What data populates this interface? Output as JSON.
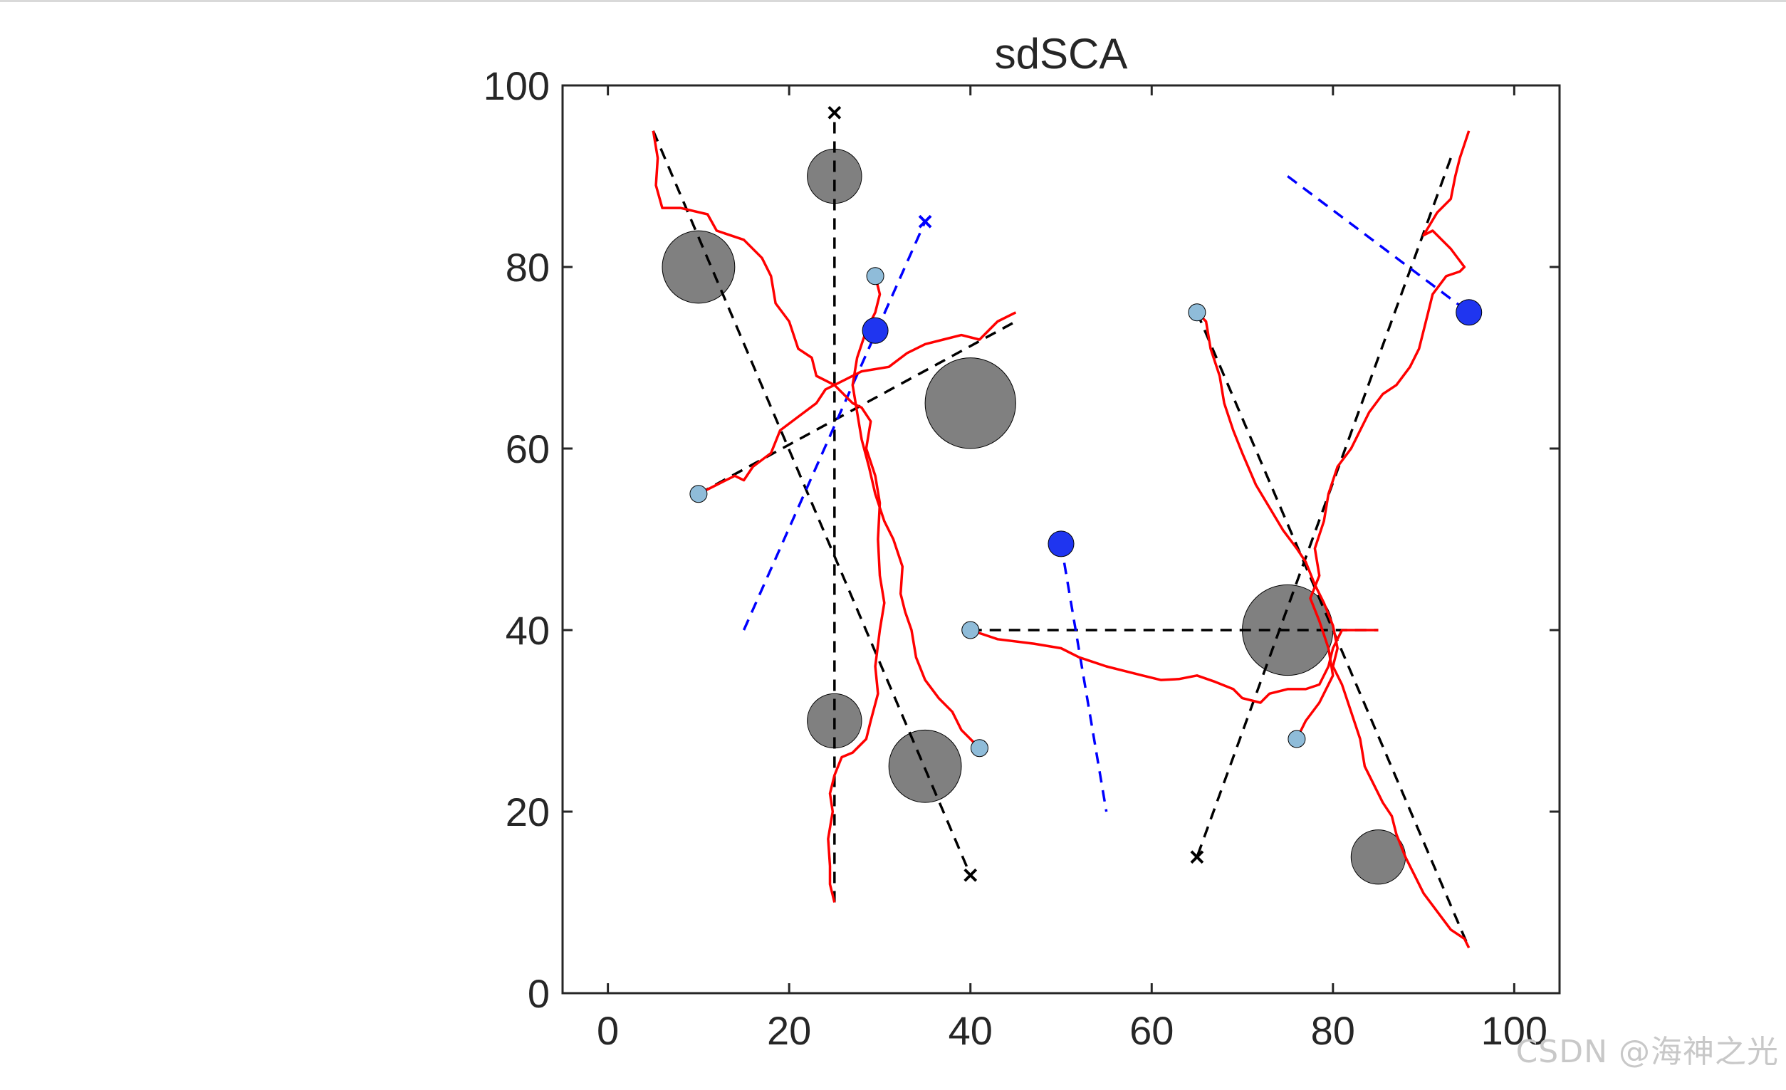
{
  "watermark": "CSDN @海神之光",
  "chart_data": {
    "type": "scatter",
    "title": "sdSCA",
    "xlabel": "",
    "ylabel": "",
    "xlim": [
      -5,
      105
    ],
    "ylim": [
      0,
      100
    ],
    "xticks": [
      0,
      20,
      40,
      60,
      80,
      100
    ],
    "yticks": [
      0,
      20,
      40,
      60,
      80,
      100
    ],
    "grid": false,
    "colors": {
      "obstacle": "#808080",
      "start": "#8fbcd9",
      "dynamic_obstacle": "#1f35f0",
      "path": "#ff0000",
      "reference_line": "#000000",
      "dynamic_line": "#0000ff"
    },
    "obstacles": [
      {
        "x": 10,
        "y": 80,
        "r": 4
      },
      {
        "x": 25,
        "y": 90,
        "r": 3
      },
      {
        "x": 40,
        "y": 65,
        "r": 5
      },
      {
        "x": 25,
        "y": 30,
        "r": 3
      },
      {
        "x": 35,
        "y": 25,
        "r": 4
      },
      {
        "x": 75,
        "y": 40,
        "r": 5
      },
      {
        "x": 85,
        "y": 15,
        "r": 3
      }
    ],
    "start_points": [
      {
        "x": 10,
        "y": 55
      },
      {
        "x": 29.5,
        "y": 79
      },
      {
        "x": 40,
        "y": 40
      },
      {
        "x": 41,
        "y": 27
      },
      {
        "x": 65,
        "y": 75
      },
      {
        "x": 76,
        "y": 28
      }
    ],
    "dynamic_obstacles": [
      {
        "x": 29.5,
        "y": 73
      },
      {
        "x": 50,
        "y": 49.5
      },
      {
        "x": 95,
        "y": 75
      }
    ],
    "reference_lines": [
      {
        "from": [
          25,
          10
        ],
        "to": [
          25,
          97
        ],
        "end_marker": "x"
      },
      {
        "from": [
          5,
          95
        ],
        "to": [
          40,
          13
        ],
        "end_marker": "x"
      },
      {
        "from": [
          10,
          55
        ],
        "to": [
          45,
          74
        ],
        "end_marker": ""
      },
      {
        "from": [
          40,
          40
        ],
        "to": [
          85,
          40
        ],
        "end_marker": ""
      },
      {
        "from": [
          65,
          75
        ],
        "to": [
          95,
          5
        ],
        "end_marker": ""
      },
      {
        "from": [
          93,
          92
        ],
        "to": [
          65,
          15
        ],
        "end_marker": "x"
      }
    ],
    "dynamic_lines": [
      {
        "from": [
          15,
          40
        ],
        "to": [
          35,
          85
        ],
        "end_marker": "x"
      },
      {
        "from": [
          50,
          49.5
        ],
        "to": [
          55,
          20
        ],
        "end_marker": ""
      },
      {
        "from": [
          75,
          90
        ],
        "to": [
          95,
          75
        ],
        "end_marker": ""
      }
    ],
    "paths": [
      [
        [
          5,
          95
        ],
        [
          5.5,
          92
        ],
        [
          5.3,
          89
        ],
        [
          6,
          86.5
        ],
        [
          8,
          86.5
        ],
        [
          11,
          85.8
        ],
        [
          12,
          84
        ],
        [
          15,
          83
        ],
        [
          17,
          81
        ],
        [
          18,
          79
        ],
        [
          18.5,
          76
        ],
        [
          20,
          74
        ],
        [
          21,
          71
        ],
        [
          22.5,
          70
        ],
        [
          23,
          68
        ],
        [
          25,
          67
        ],
        [
          26,
          66
        ],
        [
          27,
          65
        ],
        [
          28,
          64.5
        ],
        [
          29,
          63
        ],
        [
          28.5,
          60
        ],
        [
          29.5,
          57
        ],
        [
          30,
          54
        ],
        [
          29.8,
          50
        ],
        [
          30,
          46
        ],
        [
          30.5,
          43
        ],
        [
          30,
          40
        ],
        [
          29.5,
          36
        ],
        [
          29.8,
          33
        ],
        [
          29,
          30
        ],
        [
          28.5,
          28
        ],
        [
          27,
          26.5
        ],
        [
          25.8,
          26
        ],
        [
          25,
          24
        ],
        [
          24.5,
          22
        ],
        [
          24.8,
          20
        ],
        [
          24.3,
          17
        ],
        [
          24.5,
          14
        ],
        [
          24.5,
          12
        ],
        [
          25,
          10
        ]
      ],
      [
        [
          10,
          55
        ],
        [
          12,
          56
        ],
        [
          14,
          57
        ],
        [
          15,
          56.5
        ],
        [
          16,
          58
        ],
        [
          18,
          59.5
        ],
        [
          19,
          62
        ],
        [
          21,
          63.5
        ],
        [
          23,
          65
        ],
        [
          24,
          66.5
        ],
        [
          26,
          67.5
        ],
        [
          28,
          68.5
        ],
        [
          31,
          69
        ],
        [
          33,
          70.5
        ],
        [
          35,
          71.5
        ],
        [
          37,
          72
        ],
        [
          39,
          72.5
        ],
        [
          41,
          72
        ],
        [
          43,
          74
        ],
        [
          45,
          75
        ]
      ],
      [
        [
          29.5,
          79
        ],
        [
          30,
          77
        ],
        [
          29.5,
          75
        ],
        [
          28.5,
          73
        ],
        [
          27.5,
          70
        ],
        [
          27,
          67
        ],
        [
          27.5,
          64
        ],
        [
          28,
          61
        ],
        [
          28.8,
          58
        ],
        [
          29.5,
          55
        ],
        [
          30.5,
          52
        ],
        [
          31.5,
          50
        ],
        [
          32.5,
          47
        ],
        [
          32.3,
          44
        ],
        [
          32.8,
          42
        ],
        [
          33.5,
          40
        ],
        [
          34,
          37
        ],
        [
          35,
          34.5
        ],
        [
          36.5,
          32.5
        ],
        [
          38,
          31
        ],
        [
          39,
          29
        ],
        [
          40,
          28
        ],
        [
          41,
          27
        ]
      ],
      [
        [
          40,
          40
        ],
        [
          43,
          39
        ],
        [
          47,
          38.5
        ],
        [
          50,
          38
        ],
        [
          52,
          37
        ],
        [
          55,
          36
        ],
        [
          57,
          35.5
        ],
        [
          59,
          35
        ],
        [
          61,
          34.5
        ],
        [
          63,
          34.6
        ],
        [
          65,
          35
        ],
        [
          67,
          34.3
        ],
        [
          69,
          33.5
        ],
        [
          70,
          32.5
        ],
        [
          72,
          32
        ],
        [
          73,
          33
        ],
        [
          75,
          33.5
        ],
        [
          77,
          33.5
        ],
        [
          78.5,
          34
        ],
        [
          79.5,
          36
        ],
        [
          80,
          38
        ],
        [
          81,
          40
        ],
        [
          83,
          40
        ],
        [
          85,
          40
        ]
      ],
      [
        [
          65,
          75
        ],
        [
          66,
          74
        ],
        [
          66.5,
          71
        ],
        [
          67.5,
          68
        ],
        [
          68,
          65
        ],
        [
          69,
          62
        ],
        [
          70,
          59.5
        ],
        [
          71.5,
          56
        ],
        [
          73,
          53.5
        ],
        [
          74.5,
          51
        ],
        [
          76,
          49
        ],
        [
          77,
          47.5
        ],
        [
          78,
          45
        ],
        [
          79,
          43
        ],
        [
          80,
          40.5
        ],
        [
          80.5,
          38
        ],
        [
          80,
          36
        ],
        [
          81,
          34
        ],
        [
          82,
          31
        ],
        [
          83,
          28
        ],
        [
          83.5,
          25
        ],
        [
          84.5,
          23
        ],
        [
          85.5,
          21
        ],
        [
          86.5,
          19.5
        ],
        [
          87,
          17.5
        ],
        [
          88,
          15
        ],
        [
          89,
          13
        ],
        [
          90,
          11
        ],
        [
          91.5,
          9
        ],
        [
          93,
          7
        ],
        [
          94.5,
          6
        ],
        [
          95,
          5
        ]
      ],
      [
        [
          76,
          28
        ],
        [
          77,
          30
        ],
        [
          78.5,
          32
        ],
        [
          80,
          35
        ],
        [
          79.5,
          38
        ],
        [
          78.5,
          41
        ],
        [
          77.5,
          43.5
        ],
        [
          78.5,
          46
        ],
        [
          78,
          49
        ],
        [
          79,
          52
        ],
        [
          79.5,
          55
        ],
        [
          80.5,
          58
        ],
        [
          82,
          60
        ],
        [
          83,
          62
        ],
        [
          84,
          64
        ],
        [
          85.5,
          66
        ],
        [
          87,
          67
        ],
        [
          88.5,
          69
        ],
        [
          89.5,
          71
        ],
        [
          90,
          73
        ],
        [
          90.5,
          75
        ],
        [
          91,
          77
        ],
        [
          92.5,
          79
        ],
        [
          94,
          79.5
        ],
        [
          94.5,
          80
        ],
        [
          93,
          82
        ],
        [
          91,
          84
        ],
        [
          90,
          83.5
        ],
        [
          91.5,
          86
        ],
        [
          93,
          87.5
        ],
        [
          93.5,
          90
        ],
        [
          94,
          92
        ],
        [
          95,
          95
        ]
      ]
    ]
  }
}
